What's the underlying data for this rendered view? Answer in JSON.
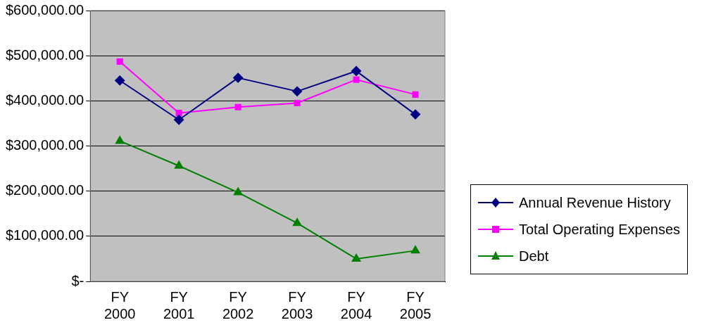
{
  "chart_data": {
    "type": "line",
    "categories": [
      "FY 2000",
      "FY 2001",
      "FY 2002",
      "FY 2003",
      "FY 2004",
      "FY 2005"
    ],
    "series": [
      {
        "name": "Annual Revenue History",
        "color": "#000080",
        "marker": "diamond",
        "values": [
          445000,
          358000,
          451000,
          421000,
          466000,
          370000
        ]
      },
      {
        "name": "Total Operating Expenses",
        "color": "#ff00ff",
        "marker": "square",
        "values": [
          487000,
          373000,
          386000,
          395000,
          447000,
          414000
        ]
      },
      {
        "name": "Debt",
        "color": "#008000",
        "marker": "triangle",
        "values": [
          311000,
          256000,
          197000,
          129000,
          50000,
          68000
        ]
      }
    ],
    "ylim": [
      0,
      600000
    ],
    "yticks": [
      {
        "value": 0,
        "label": "$-"
      },
      {
        "value": 100000,
        "label": "$100,000.00"
      },
      {
        "value": 200000,
        "label": "$200,000.00"
      },
      {
        "value": 300000,
        "label": "$300,000.00"
      },
      {
        "value": 400000,
        "label": "$400,000.00"
      },
      {
        "value": 500000,
        "label": "$500,000.00"
      },
      {
        "value": 600000,
        "label": "$600,000.00"
      }
    ],
    "grid": "y",
    "legend": "right",
    "line_style": "solid"
  }
}
